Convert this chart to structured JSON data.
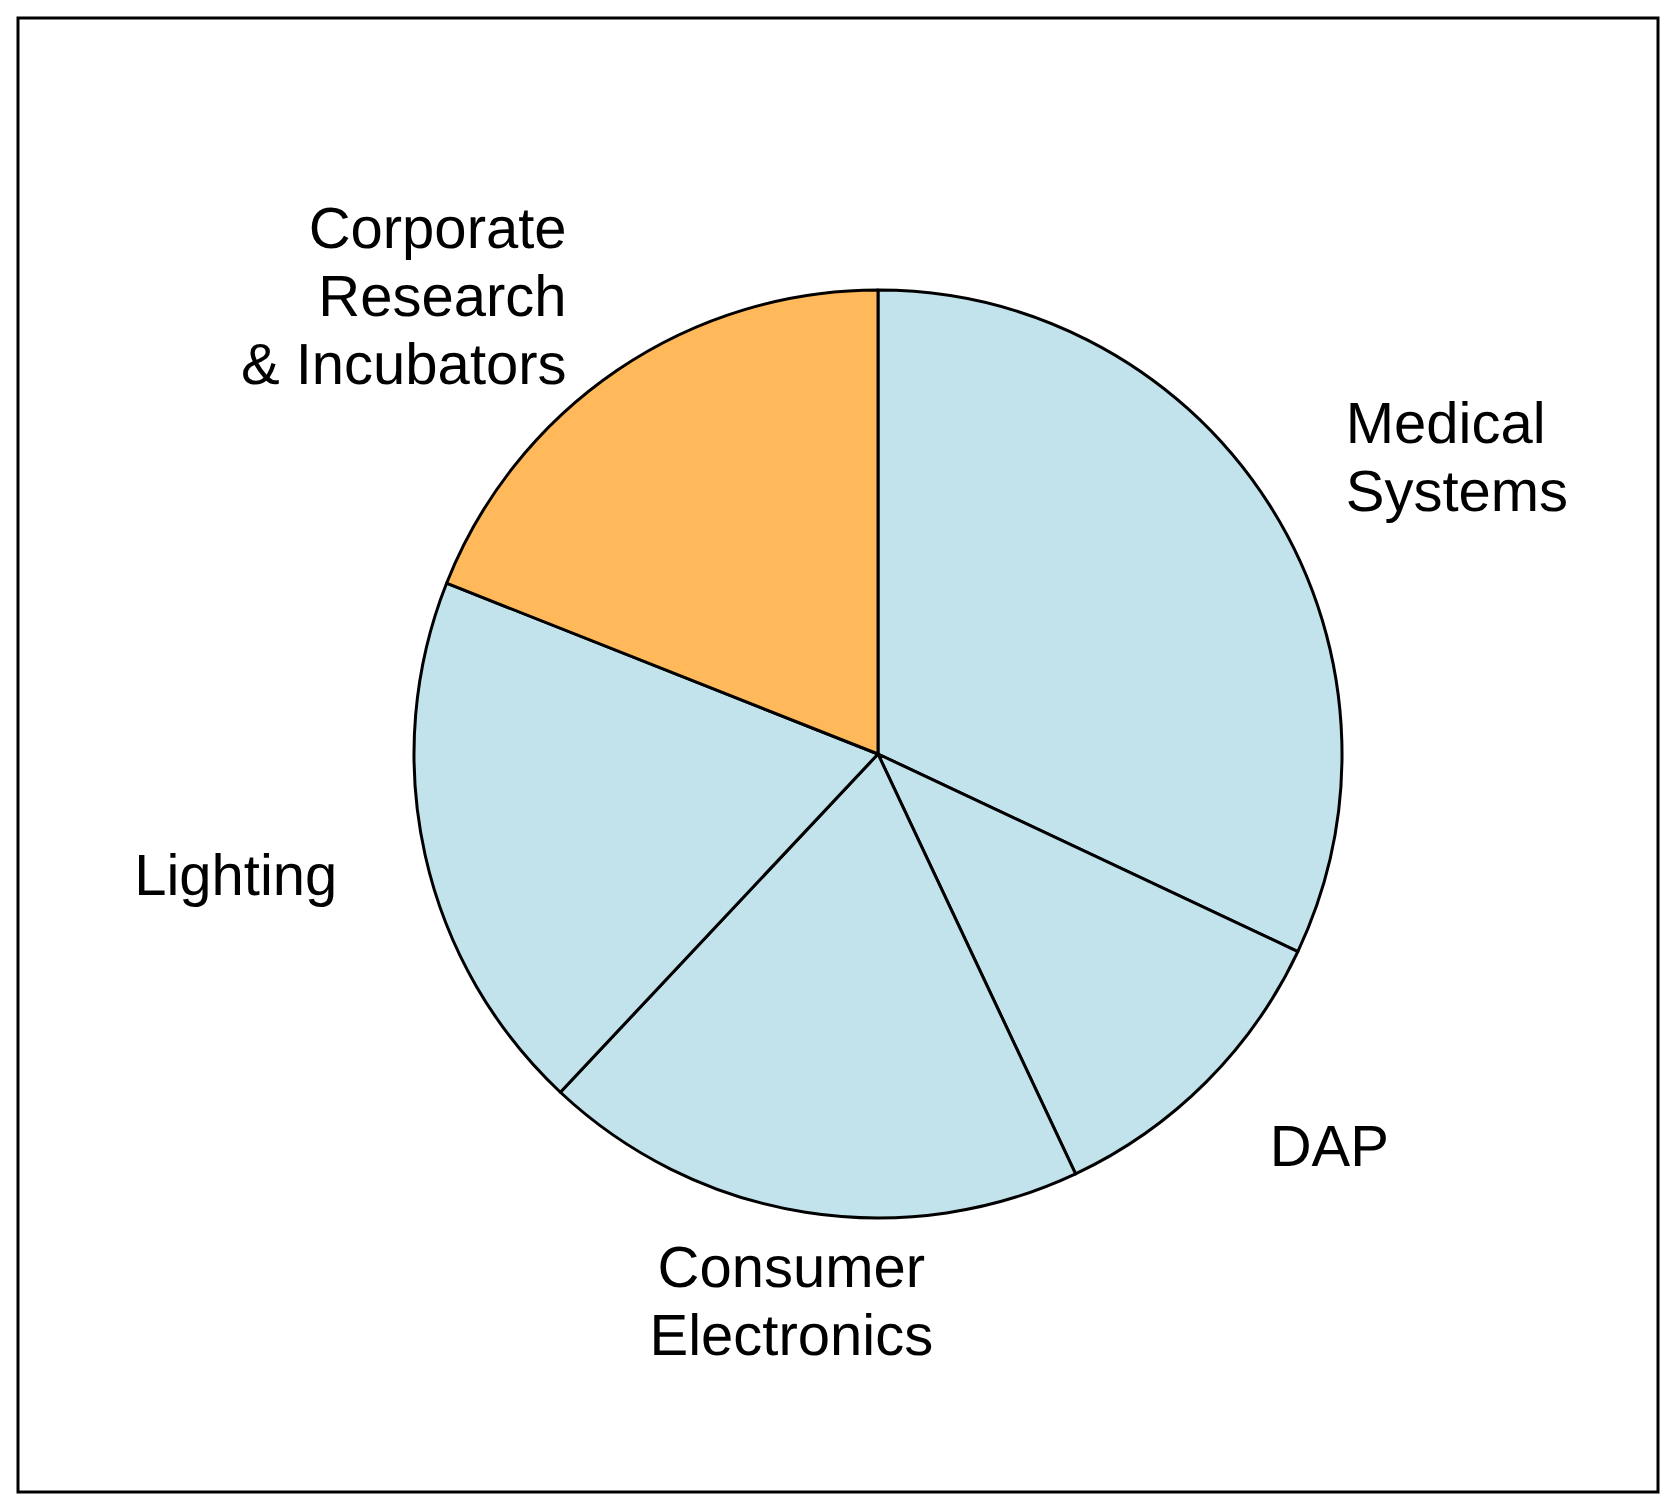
{
  "chart_data": {
    "type": "pie",
    "categories": [
      "Medical\nSystems",
      "DAP",
      "Consumer\nElectronics",
      "Lighting",
      "Corporate\nResearch\n& Incubators"
    ],
    "values": [
      32,
      11,
      19,
      19,
      19
    ],
    "colors": [
      "#c2e3eb",
      "#c2e3eb",
      "#c2e3eb",
      "#c2e3eb",
      "#ffb85a"
    ]
  }
}
